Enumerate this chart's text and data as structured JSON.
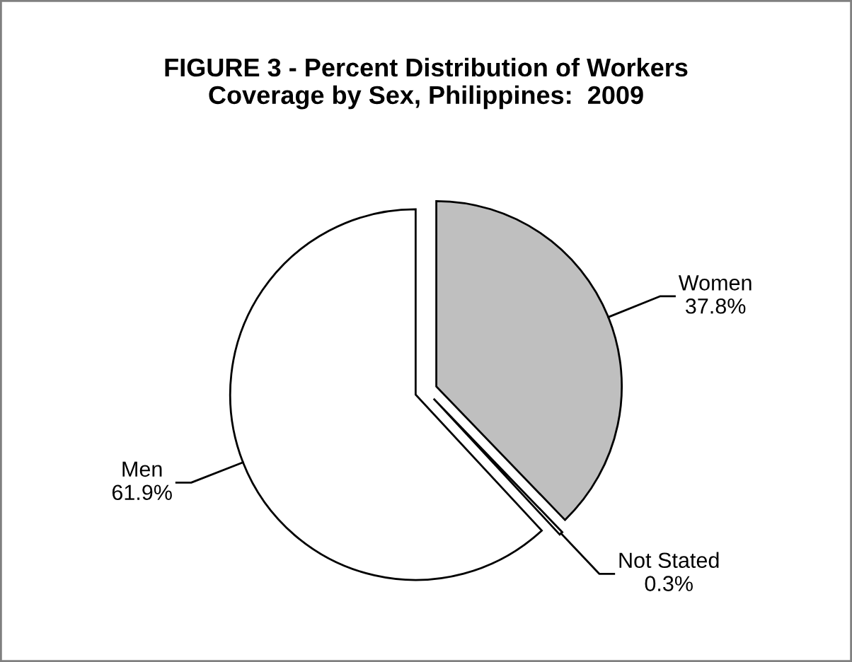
{
  "chart_data": {
    "type": "pie",
    "title": "FIGURE 3 - Percent Distribution of Workers\nCoverage by Sex, Philippines:  2009",
    "categories": [
      "Women",
      "Not Stated",
      "Men"
    ],
    "values": [
      37.8,
      0.3,
      61.9
    ],
    "colors": [
      "#bfbfbf",
      "#ffffff",
      "#ffffff"
    ],
    "value_labels": [
      "37.8%",
      "0.3%",
      "61.9%"
    ],
    "legend": false
  }
}
